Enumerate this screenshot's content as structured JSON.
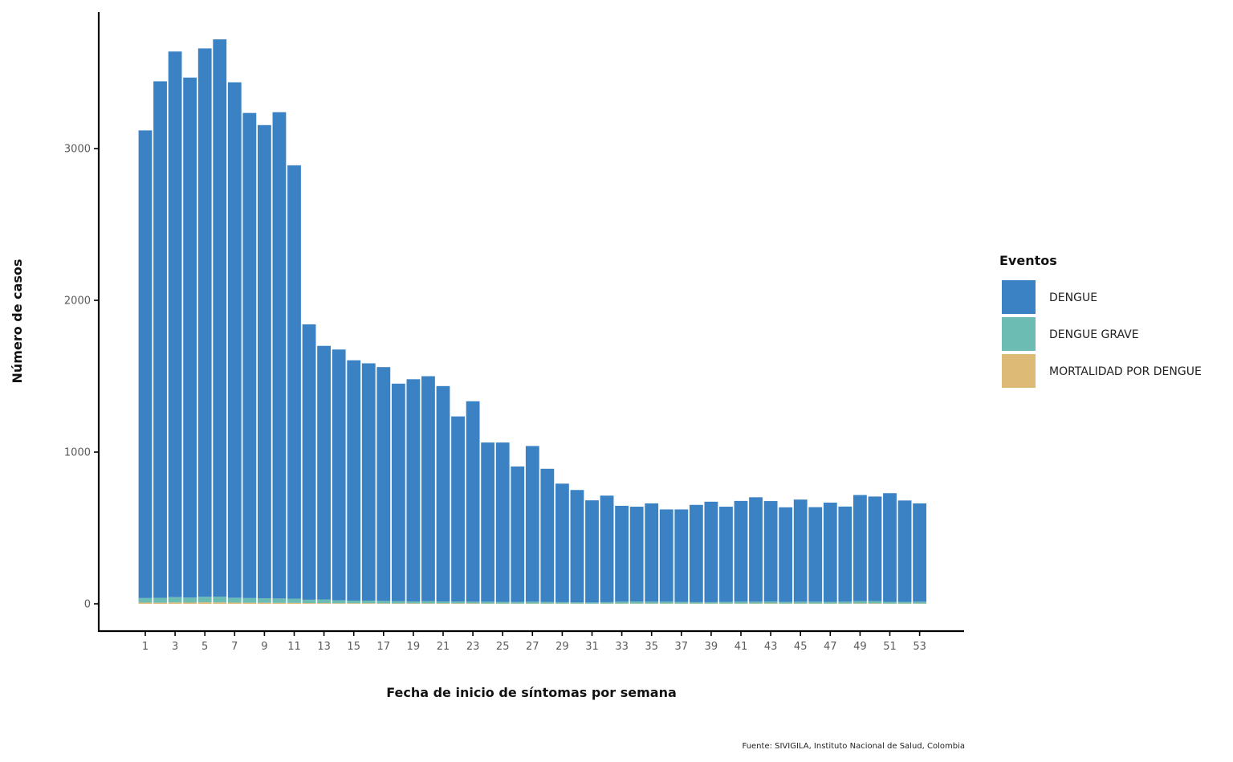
{
  "chart_data": {
    "type": "bar",
    "stacked": true,
    "title": "",
    "xlabel": "Fecha de inicio de síntomas por semana",
    "ylabel": "Número de casos",
    "caption": "Fuente: SIVIGILA, Instituto Nacional de Salud, Colombia",
    "legend_title": "Eventos",
    "legend_position": "right",
    "grid": false,
    "ylim": [
      -180,
      3900
    ],
    "yticks": [
      0,
      1000,
      2000,
      3000
    ],
    "xticks": [
      1,
      3,
      5,
      7,
      9,
      11,
      13,
      15,
      17,
      19,
      21,
      23,
      25,
      27,
      29,
      31,
      33,
      35,
      37,
      39,
      41,
      43,
      45,
      47,
      49,
      51,
      53
    ],
    "categories": [
      1,
      2,
      3,
      4,
      5,
      6,
      7,
      8,
      9,
      10,
      11,
      12,
      13,
      14,
      15,
      16,
      17,
      18,
      19,
      20,
      21,
      22,
      23,
      24,
      25,
      26,
      27,
      28,
      29,
      30,
      31,
      32,
      33,
      34,
      35,
      36,
      37,
      38,
      39,
      40,
      41,
      42,
      43,
      44,
      45,
      46,
      47,
      48,
      49,
      50,
      51,
      52,
      53
    ],
    "series": [
      {
        "name": "MORTALIDAD POR DENGUE",
        "color": "#DDBB76",
        "values": [
          8,
          7,
          9,
          8,
          10,
          9,
          8,
          7,
          7,
          6,
          6,
          5,
          5,
          4,
          4,
          4,
          3,
          3,
          3,
          3,
          3,
          3,
          3,
          2,
          2,
          2,
          2,
          2,
          2,
          2,
          1,
          2,
          2,
          2,
          2,
          2,
          2,
          2,
          2,
          2,
          2,
          2,
          3,
          2,
          2,
          2,
          2,
          2,
          3,
          3,
          2,
          2,
          2
        ]
      },
      {
        "name": "DENGUE GRAVE",
        "color": "#6DBCB3",
        "values": [
          30,
          32,
          35,
          33,
          36,
          38,
          32,
          31,
          30,
          29,
          28,
          22,
          24,
          19,
          17,
          17,
          16,
          15,
          13,
          15,
          12,
          12,
          11,
          12,
          11,
          10,
          12,
          11,
          9,
          8,
          8,
          9,
          12,
          13,
          12,
          12,
          10,
          9,
          9,
          10,
          12,
          12,
          12,
          11,
          12,
          12,
          11,
          12,
          15,
          15,
          11,
          11,
          12
        ]
      },
      {
        "name": "DENGUE",
        "color": "#3A82C4",
        "values": [
          3082,
          3404,
          3596,
          3427,
          3614,
          3673,
          3397,
          3197,
          3118,
          3205,
          2856,
          1815,
          1671,
          1653,
          1584,
          1564,
          1541,
          1433,
          1464,
          1482,
          1420,
          1220,
          1321,
          1049,
          1050,
          893,
          1026,
          877,
          781,
          740,
          673,
          702,
          632,
          625,
          648,
          608,
          610,
          641,
          662,
          628,
          664,
          688,
          662,
          623,
          673,
          623,
          654,
          627,
          699,
          689,
          716,
          668,
          648
        ]
      }
    ]
  }
}
